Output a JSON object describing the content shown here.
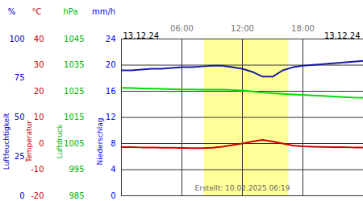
{
  "chart_data": {
    "type": "line",
    "x": [
      0,
      1,
      2,
      3,
      4,
      5,
      6,
      7,
      8,
      9,
      10,
      11,
      12,
      13,
      14,
      15,
      16,
      17,
      18,
      19,
      20,
      21,
      22,
      23,
      24
    ],
    "xlim": [
      0,
      24
    ],
    "xticks": [
      {
        "value": 6,
        "label": "06:00"
      },
      {
        "value": 12,
        "label": "12:00"
      },
      {
        "value": 18,
        "label": "18:00"
      }
    ],
    "x_start_label": "13.12.24",
    "x_end_label": "13.12.24",
    "daylight": [
      8.2,
      16.6
    ],
    "note": "Erstellt: 10.02.2025 06:19",
    "grid": true,
    "axes": [
      {
        "label": "Luftfeuchtigkeit",
        "unit": "%",
        "lim": [
          0,
          100
        ],
        "ticks": [
          0,
          25,
          50,
          75,
          100
        ],
        "color": "#0000c8"
      },
      {
        "label": "Temperatur",
        "unit": "°C",
        "lim": [
          -20,
          40
        ],
        "ticks": [
          -20,
          -10,
          0,
          10,
          20,
          30,
          40
        ],
        "color": "#cc0000"
      },
      {
        "label": "Luftdruck",
        "unit": "hPa",
        "lim": [
          985,
          1045
        ],
        "ticks": [
          985,
          995,
          1005,
          1015,
          1025,
          1035,
          1045
        ],
        "color": "#00b400"
      },
      {
        "label": "Niederschlag",
        "unit": "mm/h",
        "lim": [
          0,
          24
        ],
        "ticks": [
          0,
          4,
          8,
          12,
          16,
          20,
          24
        ],
        "color": "#0000ff",
        "grid": true
      }
    ],
    "series": [
      {
        "axis": "Luftfeuchtigkeit",
        "type": "line",
        "color": "#1a1aa8",
        "values": [
          80,
          80,
          80.5,
          81,
          81,
          81.5,
          82,
          82,
          82.5,
          83,
          83,
          82,
          81,
          79,
          76,
          76,
          80,
          82,
          83,
          83.5,
          84,
          84.5,
          85,
          85.5,
          86
        ]
      },
      {
        "axis": "Temperatur",
        "type": "line",
        "color": "#cc0000",
        "values": [
          -1.4,
          -1.4,
          -1.5,
          -1.5,
          -1.6,
          -1.6,
          -1.7,
          -1.8,
          -1.8,
          -1.6,
          -1.2,
          -0.6,
          0,
          0.8,
          1.4,
          0.8,
          0,
          -0.8,
          -1.1,
          -1.2,
          -1.3,
          -1.4,
          -1.4,
          -1.5,
          -1.5
        ]
      },
      {
        "axis": "Luftdruck",
        "type": "line",
        "color": "#00dd00",
        "values": [
          1026.3,
          1026.2,
          1026.1,
          1026,
          1025.9,
          1025.8,
          1025.7,
          1025.7,
          1025.6,
          1025.6,
          1025.6,
          1025.5,
          1025.3,
          1024.9,
          1024.5,
          1024.2,
          1024,
          1023.8,
          1023.6,
          1023.4,
          1023.2,
          1023,
          1022.8,
          1022.6,
          1022.5
        ]
      },
      {
        "axis": "Niederschlag",
        "type": "bar",
        "color": "#0000ff",
        "values": [
          0,
          0,
          0,
          0,
          0,
          0,
          0,
          0,
          0,
          0,
          0,
          0,
          0,
          0,
          0,
          0,
          0,
          0,
          0,
          0,
          0,
          0,
          0,
          0,
          0
        ]
      }
    ]
  }
}
